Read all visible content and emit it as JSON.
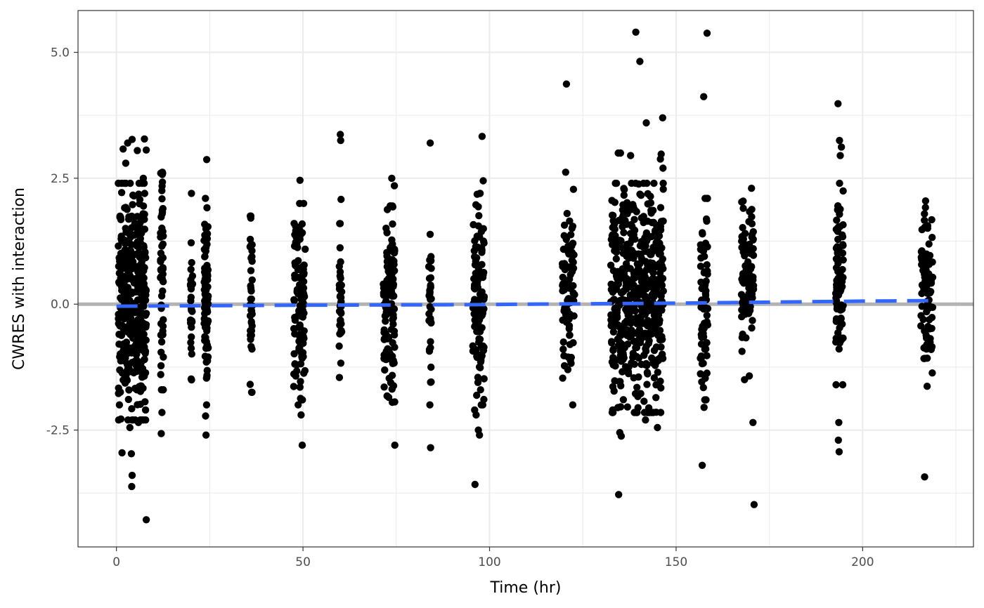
{
  "chart_data": {
    "type": "scatter",
    "title": "",
    "xlabel": "Time (hr)",
    "ylabel": "CWRES with interaction",
    "xlim": [
      -10.3,
      229.7
    ],
    "ylim": [
      -4.82,
      5.83
    ],
    "x_ticks": [
      0,
      50,
      100,
      150,
      200
    ],
    "x_tick_labels": [
      "0",
      "50",
      "100",
      "150",
      "200"
    ],
    "y_ticks": [
      -2.5,
      0.0,
      2.5,
      5.0
    ],
    "y_tick_labels": [
      "-2.5",
      "0.0",
      "2.5",
      "5.0"
    ],
    "grid": true,
    "reference_line": {
      "y": 0,
      "color": "#b3b3b3"
    },
    "trend_line": {
      "style": "dashed",
      "color": "#3366ff",
      "x": [
        0,
        50,
        100,
        110,
        150,
        200,
        218
      ],
      "y": [
        -0.04,
        -0.02,
        -0.01,
        0.0,
        0.02,
        0.06,
        0.07
      ]
    },
    "point_color": "#000000",
    "clusters": [
      {
        "x": [
          0.5,
          8
        ],
        "count": 380,
        "y_range": [
          -2.3,
          2.4
        ],
        "outliers": [
          [
            1.8,
            3.08
          ],
          [
            2.5,
            2.8
          ],
          [
            3,
            3.2
          ],
          [
            4.2,
            3.27
          ],
          [
            5.6,
            3.05
          ],
          [
            7.5,
            3.28
          ],
          [
            8.0,
            3.06
          ],
          [
            7.2,
            2.5
          ],
          [
            1.5,
            -2.95
          ],
          [
            4,
            -2.97
          ],
          [
            4.2,
            -3.4
          ],
          [
            4.1,
            -3.62
          ],
          [
            8,
            -4.28
          ],
          [
            3.6,
            -2.45
          ],
          [
            5.9,
            -2.35
          ],
          [
            7.8,
            -2.1
          ],
          [
            1.2,
            -2.28
          ],
          [
            0.8,
            -2.0
          ]
        ]
      },
      {
        "x": [
          11.8,
          12.6
        ],
        "count": 55,
        "y_range": [
          -1.7,
          2.6
        ],
        "outliers": [
          [
            12.2,
            -2.15
          ],
          [
            12.0,
            -2.57
          ],
          [
            12.3,
            2.62
          ]
        ]
      },
      {
        "x": [
          19.8,
          20.4
        ],
        "count": 26,
        "y_range": [
          -1.7,
          1.6
        ],
        "outliers": [
          [
            20.1,
            2.2
          ]
        ]
      },
      {
        "x": [
          23.5,
          24.6
        ],
        "count": 90,
        "y_range": [
          -2.0,
          2.1
        ],
        "outliers": [
          [
            24.2,
            2.87
          ],
          [
            23.9,
            -2.22
          ],
          [
            24.0,
            -2.6
          ]
        ]
      },
      {
        "x": [
          35.8,
          36.4
        ],
        "count": 38,
        "y_range": [
          -1.75,
          1.75
        ],
        "outliers": []
      },
      {
        "x": [
          47.5,
          50.6
        ],
        "count": 110,
        "y_range": [
          -1.9,
          2.0
        ],
        "outliers": [
          [
            49.2,
            2.46
          ],
          [
            48.7,
            -2.0
          ],
          [
            49.5,
            -2.2
          ],
          [
            49.8,
            -2.8
          ]
        ]
      },
      {
        "x": [
          59.7,
          60.4
        ],
        "count": 35,
        "y_range": [
          -1.75,
          1.6
        ],
        "outliers": [
          [
            60.0,
            3.37
          ],
          [
            60.1,
            3.25
          ],
          [
            60.2,
            2.08
          ]
        ]
      },
      {
        "x": [
          71.5,
          74.6
        ],
        "count": 115,
        "y_range": [
          -1.95,
          1.95
        ],
        "outliers": [
          [
            73.8,
            2.5
          ],
          [
            74.5,
            2.35
          ],
          [
            74.6,
            -2.8
          ]
        ]
      },
      {
        "x": [
          83.7,
          84.4
        ],
        "count": 32,
        "y_range": [
          -1.55,
          1.8
        ],
        "outliers": [
          [
            84.1,
            3.2
          ],
          [
            84.0,
            -2.0
          ],
          [
            84.2,
            -2.85
          ]
        ]
      },
      {
        "x": [
          95.5,
          98.6
        ],
        "count": 120,
        "y_range": [
          -2.0,
          2.2
        ],
        "outliers": [
          [
            98.0,
            3.33
          ],
          [
            98.3,
            2.45
          ],
          [
            96.0,
            -2.1
          ],
          [
            96.4,
            -2.2
          ],
          [
            97.0,
            -2.5
          ],
          [
            97.3,
            -2.6
          ],
          [
            96.1,
            -3.58
          ]
        ]
      },
      {
        "x": [
          119.5,
          122.8
        ],
        "count": 90,
        "y_range": [
          -1.7,
          1.8
        ],
        "outliers": [
          [
            120.6,
            4.37
          ],
          [
            120.4,
            2.62
          ],
          [
            122.5,
            2.28
          ],
          [
            122.3,
            -2.0
          ]
        ]
      },
      {
        "x": [
          132.5,
          146.6
        ],
        "count": 520,
        "y_range": [
          -2.15,
          2.4
        ],
        "outliers": [
          [
            139.2,
            5.4
          ],
          [
            140.3,
            4.82
          ],
          [
            142.0,
            3.6
          ],
          [
            146.4,
            3.7
          ],
          [
            134.5,
            3.0
          ],
          [
            135.1,
            3.0
          ],
          [
            137.8,
            2.95
          ],
          [
            146.0,
            2.98
          ],
          [
            145.8,
            2.88
          ],
          [
            146.5,
            2.7
          ],
          [
            134.9,
            -2.55
          ],
          [
            135.3,
            -2.62
          ],
          [
            141.8,
            -2.3
          ],
          [
            145.0,
            -2.45
          ],
          [
            134.6,
            -3.78
          ],
          [
            133.0,
            -2.1
          ]
        ]
      },
      {
        "x": [
          156.5,
          158.6
        ],
        "count": 70,
        "y_range": [
          -1.9,
          2.1
        ],
        "outliers": [
          [
            158.3,
            5.38
          ],
          [
            157.4,
            4.12
          ],
          [
            157.5,
            -2.05
          ],
          [
            157.0,
            -3.2
          ]
        ]
      },
      {
        "x": [
          167.5,
          170.8
        ],
        "count": 90,
        "y_range": [
          -1.5,
          2.3
        ],
        "outliers": [
          [
            170.6,
            -2.35
          ],
          [
            170.9,
            -3.98
          ]
        ]
      },
      {
        "x": [
          192.8,
          194.8
        ],
        "count": 80,
        "y_range": [
          -1.6,
          2.4
        ],
        "outliers": [
          [
            193.4,
            3.98
          ],
          [
            193.8,
            3.25
          ],
          [
            194.3,
            3.12
          ],
          [
            194.0,
            2.95
          ],
          [
            193.6,
            -2.35
          ],
          [
            193.5,
            -2.7
          ],
          [
            193.7,
            -2.93
          ]
        ]
      },
      {
        "x": [
          215.6,
          218.8
        ],
        "count": 95,
        "y_range": [
          -1.65,
          2.05
        ],
        "outliers": [
          [
            216.6,
            -3.43
          ]
        ]
      }
    ]
  }
}
